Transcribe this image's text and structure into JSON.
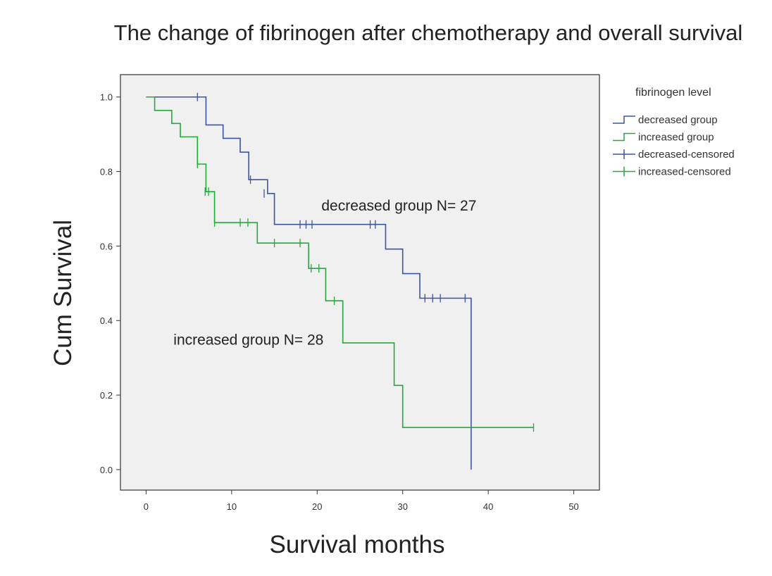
{
  "chart_data": {
    "type": "line",
    "subtype": "kaplan-meier step",
    "title": "The change of fibrinogen after chemotherapy and overall survival",
    "xlabel": "Survival months",
    "ylabel": "Cum Survival",
    "xlim": [
      -3,
      53
    ],
    "ylim": [
      -0.055,
      1.06
    ],
    "xticks": [
      0,
      10,
      20,
      30,
      40,
      50
    ],
    "xtick_labels": [
      "0",
      "10",
      "20",
      "30",
      "40",
      "50"
    ],
    "yticks": [
      0.0,
      0.2,
      0.4,
      0.6,
      0.8,
      1.0
    ],
    "ytick_labels": [
      "0.0",
      "0.2",
      "0.4",
      "0.6",
      "0.8",
      "1.0"
    ],
    "grid": false,
    "background": "#f0f0f0",
    "legend": {
      "title": "fibrinogen level",
      "position": "right",
      "entries": [
        {
          "label": "decreased group",
          "kind": "step",
          "color": "#3a55a4"
        },
        {
          "label": "increased group",
          "kind": "step",
          "color": "#22aa3a"
        },
        {
          "label": "decreased-censored",
          "kind": "censor",
          "color": "#3a55a4"
        },
        {
          "label": "increased-censored",
          "kind": "censor",
          "color": "#22aa3a"
        }
      ]
    },
    "annotations": [
      {
        "text": "decreased group N= 27",
        "x": 20.5,
        "y": 0.695
      },
      {
        "text": "increased group N= 28",
        "x": 3.2,
        "y": 0.335
      }
    ],
    "series": [
      {
        "name": "decreased group",
        "color": "#3a55a4",
        "steps": [
          [
            0,
            1.0
          ],
          [
            7,
            0.925
          ],
          [
            9,
            0.889
          ],
          [
            11,
            0.852
          ],
          [
            12,
            0.778
          ],
          [
            14.2,
            0.741
          ],
          [
            15,
            0.658
          ],
          [
            28,
            0.592
          ],
          [
            30,
            0.526
          ],
          [
            32,
            0.46
          ],
          [
            38,
            0.0
          ]
        ],
        "end_x": 38,
        "censored": [
          [
            6,
            1.0
          ],
          [
            12.2,
            0.778
          ],
          [
            13.8,
            0.741
          ],
          [
            18,
            0.658
          ],
          [
            18.7,
            0.658
          ],
          [
            19.4,
            0.658
          ],
          [
            26.2,
            0.658
          ],
          [
            26.8,
            0.658
          ],
          [
            32.6,
            0.46
          ],
          [
            33.5,
            0.46
          ],
          [
            34.4,
            0.46
          ],
          [
            37.3,
            0.46
          ]
        ]
      },
      {
        "name": "increased group",
        "color": "#22aa3a",
        "steps": [
          [
            0,
            1.0
          ],
          [
            1,
            0.964
          ],
          [
            3,
            0.929
          ],
          [
            4,
            0.893
          ],
          [
            6,
            0.82
          ],
          [
            7,
            0.746
          ],
          [
            8,
            0.663
          ],
          [
            13,
            0.608
          ],
          [
            19,
            0.54
          ],
          [
            21,
            0.453
          ],
          [
            23,
            0.34
          ],
          [
            29,
            0.226
          ],
          [
            30,
            0.113
          ]
        ],
        "end_x": 45.3,
        "censored": [
          [
            6,
            0.82
          ],
          [
            6.9,
            0.746
          ],
          [
            7.3,
            0.746
          ],
          [
            8,
            0.663
          ],
          [
            11,
            0.663
          ],
          [
            11.9,
            0.663
          ],
          [
            15,
            0.608
          ],
          [
            18,
            0.608
          ],
          [
            19.3,
            0.54
          ],
          [
            20.2,
            0.54
          ],
          [
            22,
            0.453
          ],
          [
            45.3,
            0.113
          ]
        ]
      }
    ]
  }
}
